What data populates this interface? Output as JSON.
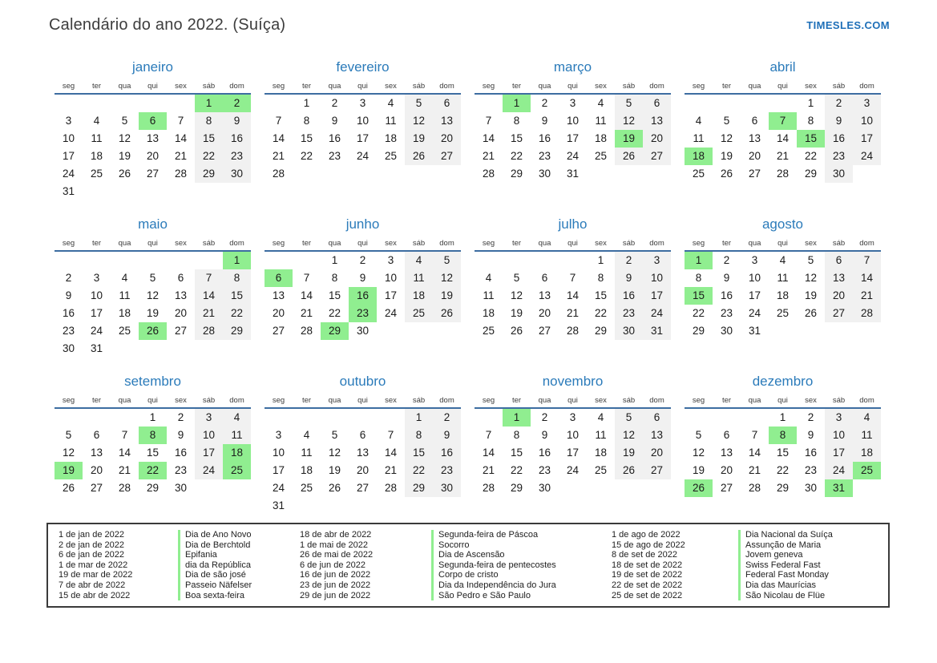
{
  "page": {
    "title": "Calendário do ano 2022. (Suíça)",
    "brand": "TIMESLES.COM"
  },
  "weekdays": [
    "seg",
    "ter",
    "qua",
    "qui",
    "sex",
    "sáb",
    "dom"
  ],
  "months": [
    {
      "name": "janeiro",
      "start": 5,
      "days": 31,
      "highlights": [
        1,
        2,
        6
      ]
    },
    {
      "name": "fevereiro",
      "start": 1,
      "days": 28,
      "highlights": []
    },
    {
      "name": "março",
      "start": 1,
      "days": 31,
      "highlights": [
        1,
        19
      ]
    },
    {
      "name": "abril",
      "start": 4,
      "days": 30,
      "highlights": [
        7,
        15,
        18
      ]
    },
    {
      "name": "maio",
      "start": 6,
      "days": 31,
      "highlights": [
        1,
        26
      ]
    },
    {
      "name": "junho",
      "start": 2,
      "days": 30,
      "highlights": [
        6,
        16,
        23,
        29
      ]
    },
    {
      "name": "julho",
      "start": 4,
      "days": 31,
      "highlights": []
    },
    {
      "name": "agosto",
      "start": 0,
      "days": 31,
      "highlights": [
        1,
        15
      ]
    },
    {
      "name": "setembro",
      "start": 3,
      "days": 30,
      "highlights": [
        8,
        18,
        19,
        22,
        25
      ]
    },
    {
      "name": "outubro",
      "start": 5,
      "days": 31,
      "highlights": []
    },
    {
      "name": "novembro",
      "start": 1,
      "days": 30,
      "highlights": [
        1
      ]
    },
    {
      "name": "dezembro",
      "start": 3,
      "days": 31,
      "highlights": [
        8,
        25,
        26,
        31
      ]
    }
  ],
  "legend": {
    "columns": [
      {
        "items": [
          {
            "date": "1 de jan de 2022",
            "name": "Dia de Ano Novo"
          },
          {
            "date": "2 de jan de 2022",
            "name": "Dia de Berchtold"
          },
          {
            "date": "6 de jan de 2022",
            "name": "Epifania"
          },
          {
            "date": "1 de mar de 2022",
            "name": "dia da República"
          },
          {
            "date": "19 de mar de 2022",
            "name": "Dia de são josé"
          },
          {
            "date": "7 de abr de 2022",
            "name": "Passeio Näfelser"
          },
          {
            "date": "15 de abr de 2022",
            "name": "Boa sexta-feira"
          }
        ]
      },
      {
        "items": [
          {
            "date": "18 de abr de 2022",
            "name": "Segunda-feira de Páscoa"
          },
          {
            "date": "1 de mai de 2022",
            "name": "Socorro"
          },
          {
            "date": "26 de mai de 2022",
            "name": "Dia de Ascensão"
          },
          {
            "date": "6 de jun de 2022",
            "name": "Segunda-feira de pentecostes"
          },
          {
            "date": "16 de jun de 2022",
            "name": "Corpo de cristo"
          },
          {
            "date": "23 de jun de 2022",
            "name": "Dia da Independência do Jura"
          },
          {
            "date": "29 de jun de 2022",
            "name": "São Pedro e São Paulo"
          }
        ]
      },
      {
        "items": [
          {
            "date": "1 de ago de 2022",
            "name": "Dia Nacional da Suíça"
          },
          {
            "date": "15 de ago de 2022",
            "name": "Assunção de Maria"
          },
          {
            "date": "8 de set de 2022",
            "name": "Jovem geneva"
          },
          {
            "date": "18 de set de 2022",
            "name": "Swiss Federal Fast"
          },
          {
            "date": "19 de set de 2022",
            "name": "Federal Fast Monday"
          },
          {
            "date": "22 de set de 2022",
            "name": "Dia das Maurícias"
          },
          {
            "date": "25 de set de 2022",
            "name": "São Nicolau de Flüe"
          }
        ]
      }
    ]
  },
  "colors": {
    "holiday_green": "#90ee90",
    "weekend_gray": "#f1f1f1",
    "month_title_blue": "#2b7bba",
    "header_line_blue": "#3d6da1",
    "brand_blue": "#1e6fb8"
  }
}
